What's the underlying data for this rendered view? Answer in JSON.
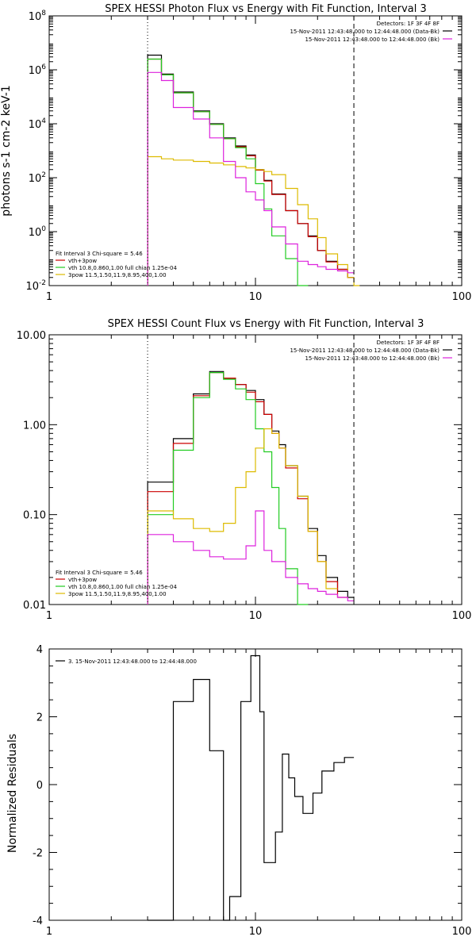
{
  "chart_data": [
    {
      "type": "line",
      "title": "SPEX HESSI Photon Flux vs Energy with Fit Function, Interval 3",
      "xlabel": "",
      "ylabel": "photons s-1 cm-2 keV-1",
      "xscale": "log",
      "yscale": "log",
      "xlim": [
        1,
        100
      ],
      "ylim": [
        0.01,
        100000000
      ],
      "x_ticks": [
        "1",
        "10",
        "100"
      ],
      "y_ticks": [
        "10-2",
        "100",
        "102",
        "104",
        "106",
        "108"
      ],
      "grid": false,
      "legend_top": {
        "placement": "top-right",
        "lines": [
          "Detectors: 1F 3F 4F 8F",
          "15-Nov-2011 12:43:48.000 to 12:44:48.000 (Data-Bk)",
          "15-Nov-2011 12:43:48.000 to 12:44:48.000 (Bk)"
        ]
      },
      "legend_bottom": {
        "placement": "bottom-left",
        "header": "Fit Interval 3   Chi-square = 5.46",
        "lines": [
          "vth+3pow",
          "vth 10.8,0.860,1.00  full chian 1.25e-04",
          "3pow 11.5,1.50,11.9,8.95,400,1.00"
        ]
      },
      "vlines": [
        {
          "x": 3.0,
          "style": "dotted"
        },
        {
          "x": 30.0,
          "style": "dashed"
        }
      ],
      "series": [
        {
          "name": "Data-Bk",
          "color": "#000000",
          "edges": [
            3.0,
            3.5,
            4.0,
            5.0,
            6.0,
            7.0,
            8.0,
            9.0,
            10.0,
            11.0,
            12.0,
            14.0,
            16.0,
            18.0,
            20.0,
            22.0,
            25.0,
            28.0,
            30.0
          ],
          "values": [
            3500000,
            700000,
            150000,
            30000,
            10000,
            3000,
            1500,
            700,
            200,
            80,
            25,
            6,
            2,
            0.7,
            0.2,
            0.08,
            0.04,
            0.02
          ]
        },
        {
          "name": "vth+3pow",
          "color": "#cc0000",
          "edges": [
            3.0,
            3.5,
            4.0,
            5.0,
            6.0,
            7.0,
            8.0,
            9.0,
            10.0,
            11.0,
            12.0,
            14.0,
            16.0,
            18.0,
            20.0,
            22.0,
            25.0,
            28.0,
            30.0
          ],
          "values": [
            2500000,
            650000,
            140000,
            28000,
            9500,
            2800,
            1400,
            650,
            190,
            75,
            24,
            6,
            2,
            0.65,
            0.2,
            0.075,
            0.04,
            0.02
          ]
        },
        {
          "name": "vth",
          "color": "#22cc22",
          "edges": [
            3.0,
            3.5,
            4.0,
            5.0,
            6.0,
            7.0,
            8.0,
            9.0,
            10.0,
            11.0,
            12.0,
            14.0,
            16.0,
            18.0
          ],
          "values": [
            2500000,
            650000,
            140000,
            28000,
            9500,
            2800,
            1300,
            500,
            60,
            7,
            0.7,
            0.1,
            0.01
          ]
        },
        {
          "name": "3pow",
          "color": "#ddbb00",
          "edges": [
            3.0,
            3.5,
            4.0,
            5.0,
            6.0,
            7.0,
            8.0,
            9.0,
            10.0,
            11.0,
            12.0,
            14.0,
            16.0,
            18.0,
            20.0,
            22.0,
            25.0,
            28.0,
            30.0,
            32.0
          ],
          "values": [
            600,
            500,
            450,
            400,
            350,
            300,
            260,
            230,
            200,
            170,
            130,
            40,
            10,
            3,
            0.6,
            0.15,
            0.06,
            0.02,
            0.01
          ]
        },
        {
          "name": "Bk",
          "color": "#dd22dd",
          "edges": [
            3.0,
            3.5,
            4.0,
            5.0,
            6.0,
            7.0,
            8.0,
            9.0,
            10.0,
            11.0,
            12.0,
            14.0,
            16.0,
            18.0,
            20.0,
            22.0,
            25.0,
            28.0,
            30.0
          ],
          "values": [
            800000,
            400000,
            40000,
            15000,
            3000,
            400,
            100,
            30,
            15,
            6,
            1.5,
            0.35,
            0.08,
            0.06,
            0.05,
            0.04,
            0.035,
            0.03
          ]
        }
      ]
    },
    {
      "type": "line",
      "title": "SPEX HESSI Count Flux vs Energy with Fit Function, Interval 3",
      "xlabel": "",
      "ylabel": "",
      "xscale": "log",
      "yscale": "log",
      "xlim": [
        1,
        100
      ],
      "ylim": [
        0.01,
        10
      ],
      "x_ticks": [
        "1",
        "10",
        "100"
      ],
      "y_ticks": [
        "0.01",
        "0.10",
        "1.00",
        "10.00"
      ],
      "grid": false,
      "legend_top": {
        "placement": "top-right",
        "lines": [
          "Detectors: 1F 3F 4F 8F",
          "15-Nov-2011 12:43:48.000 to 12:44:48.000 (Data-Bk)",
          "15-Nov-2011 12:43:48.000 to 12:44:48.000 (Bk)"
        ]
      },
      "legend_bottom": {
        "placement": "bottom-left",
        "header": "Fit Interval 3   Chi-square = 5.46",
        "lines": [
          "vth+3pow",
          "vth 10.8,0.860,1.00  full chian 1.25e-04",
          "3pow 11.5,1.50,11.9,8.95,400,1.00"
        ]
      },
      "vlines": [
        {
          "x": 3.0,
          "style": "dotted"
        },
        {
          "x": 30.0,
          "style": "dashed"
        }
      ],
      "series": [
        {
          "name": "Data-Bk",
          "color": "#000000",
          "edges": [
            3.0,
            4.0,
            5.0,
            6.0,
            7.0,
            8.0,
            9.0,
            10.0,
            11.0,
            12.0,
            13.0,
            14.0,
            16.0,
            18.0,
            20.0,
            22.0,
            25.0,
            28.0,
            30.0
          ],
          "values": [
            0.23,
            0.7,
            2.2,
            3.9,
            3.3,
            2.8,
            2.4,
            1.9,
            1.3,
            0.85,
            0.6,
            0.35,
            0.16,
            0.07,
            0.035,
            0.02,
            0.014,
            0.012
          ]
        },
        {
          "name": "vth+3pow",
          "color": "#cc0000",
          "edges": [
            3.0,
            4.0,
            5.0,
            6.0,
            7.0,
            8.0,
            9.0,
            10.0,
            11.0,
            12.0,
            13.0,
            14.0,
            16.0,
            18.0,
            20.0,
            22.0,
            25.0,
            28.0
          ],
          "values": [
            0.18,
            0.62,
            2.1,
            3.8,
            3.3,
            2.8,
            2.3,
            1.8,
            1.3,
            0.8,
            0.55,
            0.33,
            0.15,
            0.065,
            0.03,
            0.018,
            0.012
          ]
        },
        {
          "name": "vth",
          "color": "#22cc22",
          "edges": [
            3.0,
            4.0,
            5.0,
            6.0,
            7.0,
            8.0,
            9.0,
            10.0,
            11.0,
            12.0,
            13.0,
            14.0,
            16.0,
            18.0
          ],
          "values": [
            0.1,
            0.52,
            2.0,
            3.8,
            3.2,
            2.5,
            1.9,
            0.9,
            0.5,
            0.2,
            0.07,
            0.025,
            0.01
          ]
        },
        {
          "name": "3pow",
          "color": "#ddbb00",
          "edges": [
            3.0,
            4.0,
            5.0,
            6.0,
            7.0,
            8.0,
            9.0,
            10.0,
            11.0,
            12.0,
            13.0,
            14.0,
            16.0,
            18.0,
            20.0,
            22.0,
            25.0
          ],
          "values": [
            0.11,
            0.09,
            0.07,
            0.065,
            0.08,
            0.2,
            0.3,
            0.55,
            0.9,
            0.8,
            0.55,
            0.35,
            0.16,
            0.065,
            0.03,
            0.015
          ]
        },
        {
          "name": "Bk",
          "color": "#dd22dd",
          "edges": [
            3.0,
            4.0,
            5.0,
            6.0,
            7.0,
            8.0,
            9.0,
            10.0,
            11.0,
            12.0,
            14.0,
            16.0,
            18.0,
            20.0,
            22.0,
            25.0,
            28.0,
            30.0
          ],
          "values": [
            0.06,
            0.05,
            0.04,
            0.034,
            0.032,
            0.032,
            0.045,
            0.11,
            0.04,
            0.03,
            0.02,
            0.017,
            0.015,
            0.014,
            0.013,
            0.012,
            0.011
          ]
        }
      ]
    },
    {
      "type": "line",
      "title": "",
      "xlabel": "",
      "ylabel": "Normalized Residuals",
      "xscale": "log",
      "yscale": "linear",
      "xlim": [
        1,
        100
      ],
      "ylim": [
        -4,
        4
      ],
      "x_ticks": [
        "1",
        "10",
        "100"
      ],
      "y_ticks": [
        "-4",
        "-2",
        "0",
        "2",
        "4"
      ],
      "grid": false,
      "legend": {
        "placement": "top-left",
        "lines": [
          "3. 15-Nov-2011 12:43:48.000 to 12:44:48.000"
        ]
      },
      "series": [
        {
          "name": "3. 15-Nov-2011 12:43:48.000 to 12:44:48.000",
          "color": "#000000",
          "edges": [
            3.0,
            4.0,
            5.0,
            6.0,
            7.0,
            7.5,
            8.5,
            9.5,
            10.5,
            11.0,
            12.5,
            13.5,
            14.5,
            15.5,
            17.0,
            19.0,
            21.0,
            24.0,
            27.0,
            30.0
          ],
          "values": [
            -4,
            2.45,
            3.1,
            1.0,
            -4,
            -3.3,
            2.45,
            3.8,
            2.15,
            -2.3,
            -1.4,
            0.9,
            0.2,
            -0.35,
            -0.85,
            -0.25,
            0.4,
            0.65,
            0.8
          ]
        }
      ]
    }
  ]
}
